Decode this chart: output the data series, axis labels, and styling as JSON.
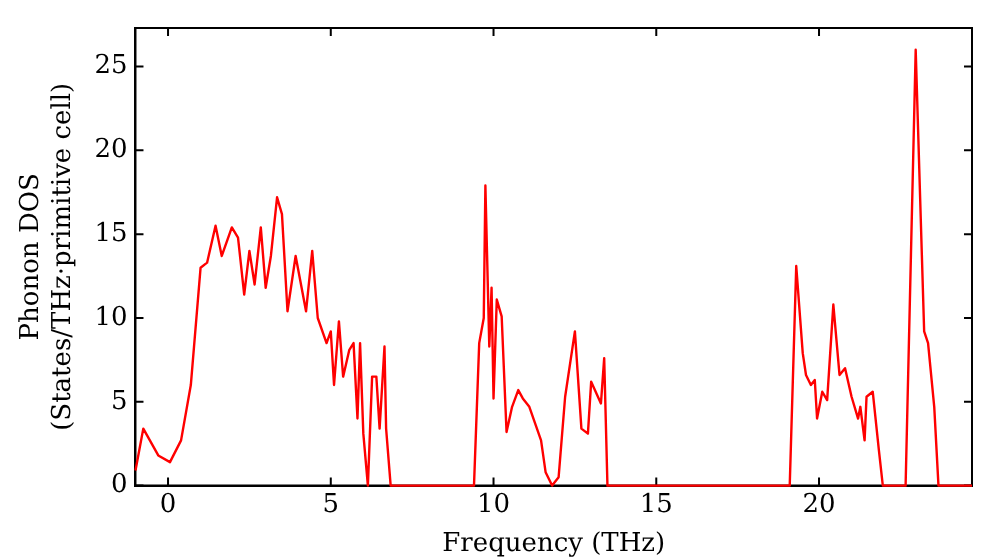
{
  "chart_data": {
    "type": "line",
    "xlabel": "Frequency (THz)",
    "ylabel": "Phonon DOS\n(States/THz·primitive cell)",
    "xlim": [
      -1,
      24.7
    ],
    "ylim": [
      0,
      27.3
    ],
    "xticks": [
      0,
      5,
      10,
      15,
      20
    ],
    "yticks": [
      0,
      5,
      10,
      15,
      20,
      25
    ],
    "grid": false,
    "legend": false,
    "marker": "none",
    "line_style": "solid",
    "series": [
      {
        "color": "#ff0000",
        "x": [
          -1,
          -0.76,
          -0.3,
          0.06,
          0.4,
          0.7,
          1.0,
          1.2,
          1.46,
          1.65,
          1.96,
          2.15,
          2.34,
          2.5,
          2.66,
          2.85,
          3,
          3.16,
          3.35,
          3.5,
          3.67,
          3.92,
          4.24,
          4.43,
          4.6,
          4.87,
          5,
          5.1,
          5.25,
          5.38,
          5.57,
          5.7,
          5.82,
          5.9,
          6.0,
          6.14,
          6.27,
          6.4,
          6.5,
          6.65,
          6.7,
          6.84,
          7.3,
          9.4,
          9.56,
          9.7,
          9.75,
          9.87,
          9.94,
          10.0,
          10.1,
          10.25,
          10.4,
          10.57,
          10.76,
          10.9,
          11.1,
          11.46,
          11.6,
          11.8,
          12.0,
          12.2,
          12.5,
          12.7,
          12.9,
          13.0,
          13.3,
          13.4,
          13.5,
          19.1,
          19.3,
          19.5,
          19.6,
          19.75,
          19.87,
          19.94,
          20.1,
          20.25,
          20.44,
          20.63,
          20.8,
          21,
          21.2,
          21.27,
          21.4,
          21.46,
          21.65,
          21.84,
          21.96,
          22.66,
          22.97,
          23.23,
          23.35,
          23.54,
          23.67,
          24.7
        ],
        "values": [
          0.9,
          3.4,
          1.8,
          1.4,
          2.7,
          6,
          13,
          13.3,
          15.5,
          13.7,
          15.4,
          14.8,
          11.4,
          14,
          12,
          15.4,
          11.8,
          13.7,
          17.2,
          16.2,
          10.4,
          13.7,
          10.4,
          14,
          10,
          8.5,
          9.2,
          6,
          9.8,
          6.5,
          8.1,
          8.5,
          4,
          8.5,
          3.1,
          0,
          6.5,
          6.5,
          3.4,
          8.3,
          3.4,
          0,
          0,
          0,
          8.5,
          10,
          17.9,
          8.3,
          11.8,
          5.2,
          11.1,
          10.1,
          3.2,
          4.7,
          5.7,
          5.2,
          4.7,
          2.7,
          0.8,
          0,
          0.5,
          5.3,
          9.2,
          3.4,
          3.1,
          6.2,
          4.9,
          7.6,
          0,
          0,
          13.1,
          7.9,
          6.6,
          6,
          6.3,
          4,
          5.6,
          5.1,
          10.8,
          6.6,
          7,
          5.3,
          4,
          4.7,
          2.7,
          5.3,
          5.6,
          2.1,
          0,
          0,
          26,
          9.2,
          8.5,
          4.7,
          0,
          0
        ]
      }
    ]
  }
}
